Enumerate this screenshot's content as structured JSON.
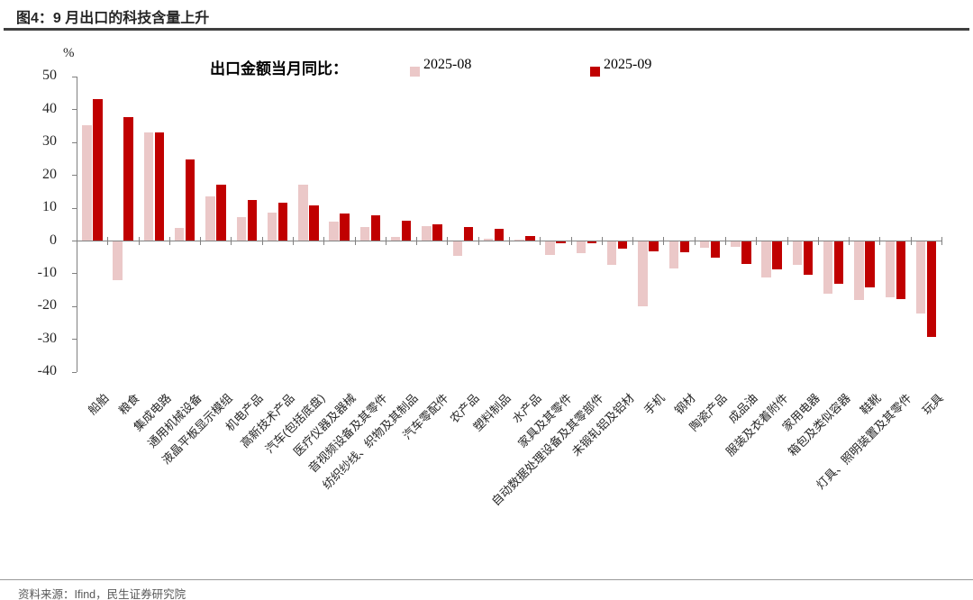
{
  "header": {
    "title": "图4：9 月出口的科技含量上升"
  },
  "chart_data": {
    "type": "bar",
    "title": "图4：9 月出口的科技含量上升",
    "legend_title": "出口金额当月同比：",
    "unit_label": "%",
    "ylim": [
      -40,
      50
    ],
    "yticks": [
      50,
      40,
      30,
      20,
      10,
      0,
      -10,
      -20,
      -30,
      -40
    ],
    "grid": false,
    "legend_position": "top",
    "categories": [
      "船舶",
      "粮食",
      "集成电路",
      "通用机械设备",
      "液晶平板显示模组",
      "机电产品",
      "高新技术产品",
      "汽车(包括底盘)",
      "医疗仪器及器械",
      "音视频设备及其零件",
      "纺织纱线、织物及其制品",
      "汽车零配件",
      "农产品",
      "塑料制品",
      "水产品",
      "家具及其零件",
      "自动数据处理设备及其零部件",
      "未锻轧铝及铝材",
      "手机",
      "钢材",
      "陶瓷产品",
      "成品油",
      "服装及衣着附件",
      "家用电器",
      "箱包及类似容器",
      "鞋靴",
      "灯具、照明装置及其零件",
      "玩具"
    ],
    "series": [
      {
        "name": "2025-08",
        "color": "#EBC8C8",
        "values": [
          35.0,
          -11.8,
          33.0,
          3.9,
          13.5,
          7.2,
          8.6,
          17.0,
          5.8,
          4.0,
          1.0,
          4.5,
          -4.4,
          0.5,
          0.3,
          -4.0,
          -3.6,
          -7.2,
          -19.8,
          -8.1,
          -2.0,
          -1.7,
          -10.9,
          -7.1,
          -15.8,
          -17.8,
          -17.1,
          -21.9
        ]
      },
      {
        "name": "2025-09",
        "color": "#C00000",
        "values": [
          43.2,
          37.7,
          32.8,
          24.8,
          17.0,
          12.3,
          11.5,
          10.6,
          8.3,
          7.7,
          6.0,
          5.0,
          4.2,
          3.5,
          1.5,
          -0.5,
          -0.6,
          -2.2,
          -2.9,
          -3.4,
          -5.0,
          -6.8,
          -8.5,
          -10.1,
          -13.0,
          -13.9,
          -17.6,
          -29.0
        ]
      }
    ],
    "axis_color": "#808080"
  },
  "footer": {
    "source": "资料来源：Ifind，民生证券研究院"
  }
}
